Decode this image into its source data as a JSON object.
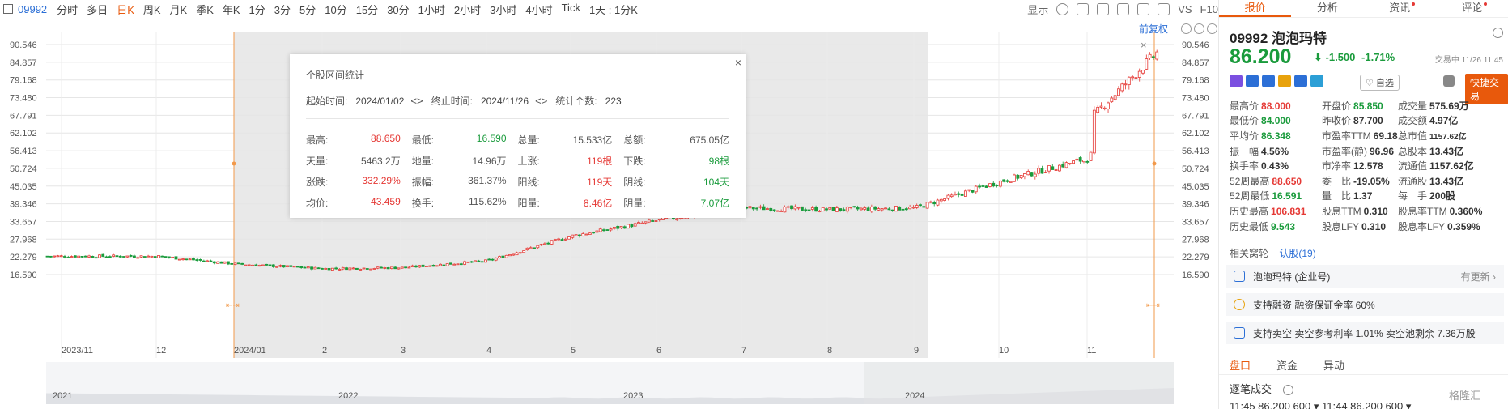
{
  "toolbar": {
    "code": "09992",
    "periods": [
      "分时",
      "多日",
      "日K",
      "周K",
      "月K",
      "季K",
      "年K",
      "1分",
      "3分",
      "5分",
      "10分",
      "15分",
      "30分",
      "1小时",
      "2小时",
      "3小时",
      "4小时",
      "Tick",
      "1天 : 1分K"
    ],
    "active_period": "日K",
    "display_label": "显示",
    "vs_label": "VS",
    "f10_label": "F10"
  },
  "chart": {
    "restore_label": "前复权",
    "y_ticks": [
      "90.546",
      "84.857",
      "79.168",
      "73.480",
      "67.791",
      "62.102",
      "56.413",
      "50.724",
      "45.035",
      "39.346",
      "33.657",
      "27.968",
      "22.279",
      "16.590"
    ],
    "x_ticks": [
      "2023/11",
      "12",
      "2024/01",
      "2",
      "3",
      "4",
      "5",
      "6",
      "7",
      "8",
      "9",
      "10",
      "11"
    ],
    "navigator_labels": [
      "2021",
      "2022",
      "2023",
      "2024"
    ]
  },
  "chart_data": {
    "type": "candlestick",
    "x": [
      "2023-11",
      "2023-12",
      "2024-01",
      "2024-02",
      "2024-03",
      "2024-04",
      "2024-05",
      "2024-06",
      "2024-07",
      "2024-08",
      "2024-09",
      "2024-10",
      "2024-11"
    ],
    "close": [
      22.5,
      20.0,
      18.5,
      18.8,
      21.0,
      29.0,
      34.0,
      38.0,
      37.5,
      38.0,
      46.5,
      54.0,
      86.2
    ],
    "high": [
      24.5,
      23.0,
      20.0,
      20.5,
      24.0,
      30.5,
      36.0,
      40.5,
      40.0,
      42.0,
      49.5,
      78.0,
      88.65
    ],
    "low": [
      21.0,
      19.0,
      16.59,
      17.0,
      19.0,
      26.0,
      30.0,
      34.5,
      35.0,
      36.0,
      42.0,
      48.0,
      67.0
    ],
    "y_ticks": [
      90.546,
      84.857,
      79.168,
      73.48,
      67.791,
      62.102,
      56.413,
      50.724,
      45.035,
      39.346,
      33.657,
      27.968,
      22.279,
      16.59
    ],
    "ylim": [
      16.59,
      90.546
    ],
    "selection": {
      "start": "2024/01/02",
      "end": "2024/11/26"
    },
    "grid": true
  },
  "popup": {
    "title": "个股区间统计",
    "start_label": "起始时间:",
    "start_value": "2024/01/02",
    "end_label": "终止时间:",
    "end_value": "2024/11/26",
    "count_label": "统计个数:",
    "count_value": "223",
    "rows": [
      [
        {
          "label": "最高:",
          "value": "88.650",
          "color": "red"
        },
        {
          "label": "最低:",
          "value": "16.590",
          "color": "green"
        },
        {
          "label": "总量:",
          "value": "15.533亿",
          "color": ""
        },
        {
          "label": "总额:",
          "value": "675.05亿",
          "color": ""
        }
      ],
      [
        {
          "label": "天量:",
          "value": "5463.2万",
          "color": ""
        },
        {
          "label": "地量:",
          "value": "14.96万",
          "color": ""
        },
        {
          "label": "上涨:",
          "value": "119根",
          "color": "red"
        },
        {
          "label": "下跌:",
          "value": "98根",
          "color": "green"
        }
      ],
      [
        {
          "label": "涨跌:",
          "value": "332.29%",
          "color": "red"
        },
        {
          "label": "振幅:",
          "value": "361.37%",
          "color": ""
        },
        {
          "label": "阳线:",
          "value": "119天",
          "color": "red"
        },
        {
          "label": "阴线:",
          "value": "104天",
          "color": "green"
        }
      ],
      [
        {
          "label": "均价:",
          "value": "43.459",
          "color": "red"
        },
        {
          "label": "换手:",
          "value": "115.62%",
          "color": ""
        },
        {
          "label": "阳量:",
          "value": "8.46亿",
          "color": "red"
        },
        {
          "label": "阴量:",
          "value": "7.07亿",
          "color": "green"
        }
      ]
    ]
  },
  "panel": {
    "tabs": [
      "报价",
      "分析",
      "资讯",
      "评论"
    ],
    "stock_code": "09992",
    "stock_name": "泡泡玛特",
    "price": "86.200",
    "arrow": "⬇",
    "change": "-1.500",
    "change_pct": "-1.71%",
    "trade_status": "交易中 11/26 11:45",
    "fav_label": "自选",
    "quick_trade_label": "快捷交易",
    "badge_colors": [
      "#7b4fe0",
      "#2c6fd6",
      "#2c6fd6",
      "#e8a20c",
      "#2c6fd6",
      "#2c9fd6"
    ],
    "quotes": [
      [
        {
          "label": "最高价",
          "value": "88.000",
          "color": "red"
        },
        {
          "label": "开盘价",
          "value": "85.850",
          "color": "green"
        },
        {
          "label": "成交量",
          "value": "575.69万",
          "color": ""
        }
      ],
      [
        {
          "label": "最低价",
          "value": "84.000",
          "color": "green"
        },
        {
          "label": "昨收价",
          "value": "87.700",
          "color": ""
        },
        {
          "label": "成交额",
          "value": "4.97亿",
          "color": ""
        }
      ],
      [
        {
          "label": "平均价",
          "value": "86.348",
          "color": "green"
        },
        {
          "label": "市盈率TTM",
          "value": "69.18",
          "color": ""
        },
        {
          "label": "总市值",
          "value": "1157.62亿",
          "color": "small"
        }
      ],
      [
        {
          "label": "振　幅",
          "value": "4.56%",
          "color": ""
        },
        {
          "label": "市盈率(静)",
          "value": "96.96",
          "color": ""
        },
        {
          "label": "总股本",
          "value": "13.43亿",
          "color": ""
        }
      ],
      [
        {
          "label": "换手率",
          "value": "0.43%",
          "color": ""
        },
        {
          "label": "市净率",
          "value": "12.578",
          "color": ""
        },
        {
          "label": "流通值",
          "value": "1157.62亿",
          "color": ""
        }
      ],
      [
        {
          "label": "52周最高",
          "value": "88.650",
          "color": "red"
        },
        {
          "label": "委　比",
          "value": "-19.05%",
          "color": ""
        },
        {
          "label": "流通股",
          "value": "13.43亿",
          "color": ""
        }
      ],
      [
        {
          "label": "52周最低",
          "value": "16.591",
          "color": "green"
        },
        {
          "label": "量　比",
          "value": "1.37",
          "color": ""
        },
        {
          "label": "每　手",
          "value": "200股",
          "color": ""
        }
      ],
      [
        {
          "label": "历史最高",
          "value": "106.831",
          "color": "red"
        },
        {
          "label": "股息TTM",
          "value": "0.310",
          "color": ""
        },
        {
          "label": "股息率TTM",
          "value": "0.360%",
          "color": ""
        }
      ],
      [
        {
          "label": "历史最低",
          "value": "9.543",
          "color": "green"
        },
        {
          "label": "股息LFY",
          "value": "0.310",
          "color": ""
        },
        {
          "label": "股息率LFY",
          "value": "0.359%",
          "color": ""
        }
      ]
    ],
    "related_label": "相关窝轮",
    "related_link": "认股(19)",
    "card1_text": "泡泡玛特 (企业号)",
    "card1_more": "有更新 ›",
    "card2_text": "支持融资 融资保证金率 60%",
    "card3_text": "支持卖空 卖空参考利率 1.01% 卖空池剩余 7.36万股",
    "bottom_tabs": [
      "盘口",
      "资金",
      "异动"
    ],
    "trans_label": "逐笔成交",
    "trade_row": "11:45   86.200        600 ▾  11:44   86.200   600 ▾",
    "watermark": "格隆汇"
  }
}
